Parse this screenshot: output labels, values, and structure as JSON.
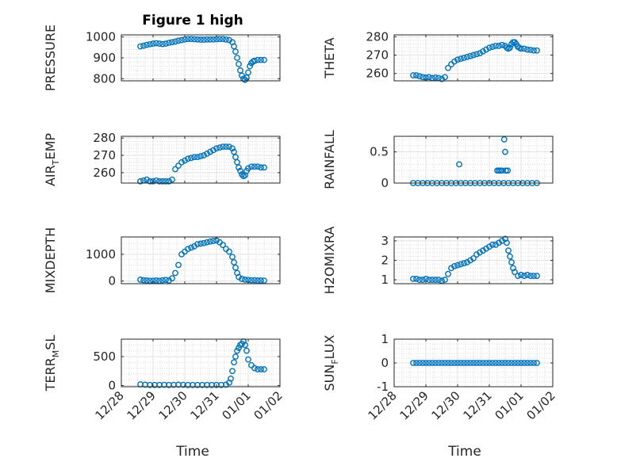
{
  "title": "Figure 1 high",
  "xlabel": "Time",
  "x_ticks": [
    "12/28",
    "12/29",
    "12/30",
    "12/31",
    "01/01",
    "01/02"
  ],
  "x_range_days": [
    0,
    5
  ],
  "chart_data": [
    {
      "type": "scatter",
      "ylabel": "PRESSURE",
      "ylim": [
        790,
        1010
      ],
      "yticks": [
        800,
        900,
        1000
      ],
      "grid": true,
      "marker": "open-circle",
      "color": "#0072BD",
      "series": [
        {
          "x": [
            0.6,
            0.7,
            0.8,
            0.9,
            1.0,
            1.1,
            1.2,
            1.3,
            1.4,
            1.5,
            1.6,
            1.7,
            1.8,
            1.9,
            2.0,
            2.1,
            2.2,
            2.3,
            2.4,
            2.5,
            2.6,
            2.7,
            2.8,
            2.9,
            3.0,
            3.1,
            3.2,
            3.3,
            3.4,
            3.5,
            3.55,
            3.6,
            3.65,
            3.7,
            3.75,
            3.8,
            3.85,
            3.9,
            3.95,
            4.0,
            4.05,
            4.1,
            4.15,
            4.2,
            4.3,
            4.4,
            4.5
          ],
          "y": [
            955,
            958,
            962,
            965,
            968,
            970,
            968,
            966,
            968,
            972,
            975,
            978,
            982,
            985,
            988,
            990,
            990,
            989,
            988,
            987,
            987,
            988,
            988,
            988,
            989,
            990,
            990,
            988,
            985,
            975,
            955,
            930,
            900,
            870,
            840,
            815,
            800,
            795,
            805,
            830,
            860,
            875,
            882,
            886,
            890,
            890,
            890
          ]
        }
      ]
    },
    {
      "type": "scatter",
      "ylabel": "THETA",
      "ylim": [
        256,
        281
      ],
      "yticks": [
        260,
        270,
        280
      ],
      "grid": true,
      "marker": "open-circle",
      "color": "#0072BD",
      "series": [
        {
          "x": [
            0.6,
            0.7,
            0.8,
            0.9,
            1.0,
            1.1,
            1.2,
            1.3,
            1.4,
            1.5,
            1.6,
            1.7,
            1.8,
            1.9,
            2.0,
            2.1,
            2.2,
            2.3,
            2.4,
            2.5,
            2.6,
            2.7,
            2.8,
            2.9,
            3.0,
            3.1,
            3.2,
            3.3,
            3.4,
            3.5,
            3.55,
            3.6,
            3.65,
            3.7,
            3.75,
            3.8,
            3.85,
            3.9,
            3.95,
            4.0,
            4.1,
            4.2,
            4.3,
            4.4,
            4.5
          ],
          "y": [
            259,
            259,
            258.5,
            258,
            257.8,
            258,
            257.5,
            257.8,
            257.5,
            257,
            258,
            263,
            265,
            266.5,
            267.5,
            268,
            268.5,
            269,
            269.5,
            270,
            270.5,
            271,
            272,
            273,
            274,
            274.5,
            275,
            275,
            275.5,
            275,
            274,
            273.5,
            274,
            276,
            277,
            277,
            276,
            274.5,
            274,
            273.5,
            273.5,
            273,
            272.8,
            272.5,
            272.5
          ]
        }
      ]
    },
    {
      "type": "scatter",
      "ylabel": "AIR_TEMP",
      "ylim": [
        254,
        281
      ],
      "yticks": [
        260,
        270,
        280
      ],
      "grid": true,
      "marker": "open-circle",
      "color": "#0072BD",
      "series": [
        {
          "x": [
            0.6,
            0.7,
            0.8,
            0.9,
            1.0,
            1.1,
            1.2,
            1.3,
            1.4,
            1.5,
            1.6,
            1.7,
            1.8,
            1.9,
            2.0,
            2.1,
            2.2,
            2.3,
            2.4,
            2.5,
            2.6,
            2.7,
            2.8,
            2.9,
            3.0,
            3.1,
            3.2,
            3.3,
            3.4,
            3.5,
            3.55,
            3.6,
            3.65,
            3.7,
            3.75,
            3.8,
            3.85,
            3.9,
            3.95,
            4.0,
            4.1,
            4.2,
            4.3,
            4.4,
            4.5
          ],
          "y": [
            255,
            255.5,
            256,
            255,
            255,
            255.5,
            255,
            255,
            255,
            255,
            256,
            262,
            264,
            266,
            267,
            268,
            268.5,
            269,
            269,
            269.5,
            270,
            271,
            272,
            273,
            274,
            274.5,
            275,
            275,
            275,
            274,
            272,
            269,
            266,
            263,
            261,
            259,
            258,
            258.5,
            261,
            262.5,
            263.5,
            263.5,
            263.5,
            263,
            263
          ]
        }
      ]
    },
    {
      "type": "scatter",
      "ylabel": "RAINFALL",
      "ylim": [
        0,
        0.75
      ],
      "yticks": [
        0,
        0.5
      ],
      "grid": true,
      "marker": "open-circle",
      "color": "#0072BD",
      "series": [
        {
          "x": [
            0.6,
            0.75,
            0.9,
            1.05,
            1.2,
            1.35,
            1.5,
            1.65,
            1.8,
            1.95,
            2.1,
            2.25,
            2.4,
            2.55,
            2.7,
            2.85,
            3.0,
            3.15,
            3.3,
            3.45,
            3.6,
            3.75,
            3.9,
            4.05,
            4.2,
            4.35,
            4.5,
            2.05,
            3.25,
            3.3,
            3.35,
            3.4,
            3.47,
            3.5,
            3.52,
            3.58
          ],
          "y": [
            0,
            0,
            0,
            0,
            0,
            0,
            0,
            0,
            0,
            0,
            0,
            0,
            0,
            0,
            0,
            0,
            0,
            0,
            0,
            0,
            0,
            0,
            0,
            0,
            0,
            0,
            0,
            0.3,
            0.2,
            0.2,
            0.2,
            0.2,
            0.7,
            0.5,
            0.2,
            0.2
          ]
        }
      ]
    },
    {
      "type": "scatter",
      "ylabel": "MIXDEPTH",
      "ylim": [
        -100,
        1650
      ],
      "yticks": [
        0,
        1000
      ],
      "grid": true,
      "marker": "open-circle",
      "color": "#0072BD",
      "series": [
        {
          "x": [
            0.6,
            0.7,
            0.8,
            0.9,
            1.0,
            1.1,
            1.2,
            1.3,
            1.4,
            1.5,
            1.6,
            1.7,
            1.8,
            1.9,
            2.0,
            2.1,
            2.2,
            2.3,
            2.4,
            2.5,
            2.6,
            2.7,
            2.8,
            2.9,
            3.0,
            3.1,
            3.2,
            3.3,
            3.4,
            3.5,
            3.55,
            3.6,
            3.65,
            3.7,
            3.8,
            3.9,
            4.0,
            4.1,
            4.2,
            4.3,
            4.4,
            4.5
          ],
          "y": [
            50,
            30,
            20,
            10,
            10,
            20,
            10,
            30,
            40,
            20,
            100,
            300,
            600,
            1000,
            1100,
            1200,
            1250,
            1300,
            1380,
            1400,
            1420,
            1450,
            1480,
            1500,
            1520,
            1450,
            1350,
            1200,
            1100,
            900,
            700,
            500,
            300,
            150,
            80,
            50,
            40,
            30,
            30,
            20,
            20,
            15
          ]
        }
      ]
    },
    {
      "type": "scatter",
      "ylabel": "H2OMIXRA",
      "ylim": [
        0.8,
        3.2
      ],
      "yticks": [
        1,
        2,
        3
      ],
      "grid": true,
      "marker": "open-circle",
      "color": "#0072BD",
      "series": [
        {
          "x": [
            0.6,
            0.7,
            0.8,
            0.9,
            1.0,
            1.1,
            1.2,
            1.3,
            1.4,
            1.5,
            1.6,
            1.7,
            1.8,
            1.9,
            2.0,
            2.1,
            2.2,
            2.3,
            2.4,
            2.5,
            2.6,
            2.7,
            2.8,
            2.9,
            3.0,
            3.1,
            3.2,
            3.3,
            3.4,
            3.5,
            3.55,
            3.6,
            3.65,
            3.7,
            3.75,
            3.8,
            3.9,
            4.0,
            4.1,
            4.2,
            4.3,
            4.4,
            4.5
          ],
          "y": [
            1.05,
            1.05,
            1.0,
            1.0,
            1.05,
            1.0,
            1.0,
            1.0,
            1.0,
            0.95,
            1.0,
            1.3,
            1.6,
            1.7,
            1.75,
            1.8,
            1.85,
            1.9,
            2.0,
            2.1,
            2.3,
            2.4,
            2.5,
            2.6,
            2.7,
            2.8,
            2.8,
            2.9,
            3.0,
            3.1,
            2.9,
            2.5,
            2.2,
            1.9,
            1.6,
            1.4,
            1.2,
            1.25,
            1.2,
            1.25,
            1.2,
            1.2,
            1.2
          ]
        }
      ]
    },
    {
      "type": "scatter",
      "ylabel": "TERR_MSL",
      "ylim": [
        -20,
        800
      ],
      "yticks": [
        0,
        500
      ],
      "grid": true,
      "marker": "open-circle",
      "color": "#0072BD",
      "series": [
        {
          "x": [
            0.6,
            0.75,
            0.9,
            1.05,
            1.2,
            1.35,
            1.5,
            1.65,
            1.8,
            1.95,
            2.1,
            2.25,
            2.4,
            2.55,
            2.7,
            2.85,
            3.0,
            3.15,
            3.3,
            3.4,
            3.45,
            3.5,
            3.55,
            3.6,
            3.65,
            3.7,
            3.75,
            3.8,
            3.85,
            3.9,
            3.95,
            4.0,
            4.1,
            4.2,
            4.3,
            4.4,
            4.5
          ],
          "y": [
            20,
            15,
            10,
            10,
            10,
            12,
            10,
            12,
            15,
            12,
            10,
            10,
            10,
            10,
            10,
            10,
            10,
            10,
            15,
            50,
            120,
            250,
            400,
            500,
            600,
            650,
            700,
            720,
            760,
            700,
            600,
            450,
            350,
            300,
            280,
            280,
            280
          ]
        }
      ]
    },
    {
      "type": "scatter",
      "ylabel": "SUN_FLUX",
      "ylim": [
        -1,
        1
      ],
      "yticks": [
        -1,
        0,
        1
      ],
      "grid": true,
      "marker": "open-circle",
      "color": "#0072BD",
      "series": [
        {
          "x": [
            0.6,
            0.7,
            0.8,
            0.9,
            1.0,
            1.1,
            1.2,
            1.3,
            1.4,
            1.5,
            1.6,
            1.7,
            1.8,
            1.9,
            2.0,
            2.1,
            2.2,
            2.3,
            2.4,
            2.5,
            2.6,
            2.7,
            2.8,
            2.9,
            3.0,
            3.1,
            3.2,
            3.3,
            3.4,
            3.5,
            3.6,
            3.7,
            3.8,
            3.9,
            4.0,
            4.1,
            4.2,
            4.3,
            4.4,
            4.5
          ],
          "y": [
            0,
            0,
            0,
            0,
            0,
            0,
            0,
            0,
            0,
            0,
            0,
            0,
            0,
            0,
            0,
            0,
            0,
            0,
            0,
            0,
            0,
            0,
            0,
            0,
            0,
            0,
            0,
            0,
            0,
            0,
            0,
            0,
            0,
            0,
            0,
            0,
            0,
            0,
            0,
            0
          ]
        }
      ]
    }
  ]
}
